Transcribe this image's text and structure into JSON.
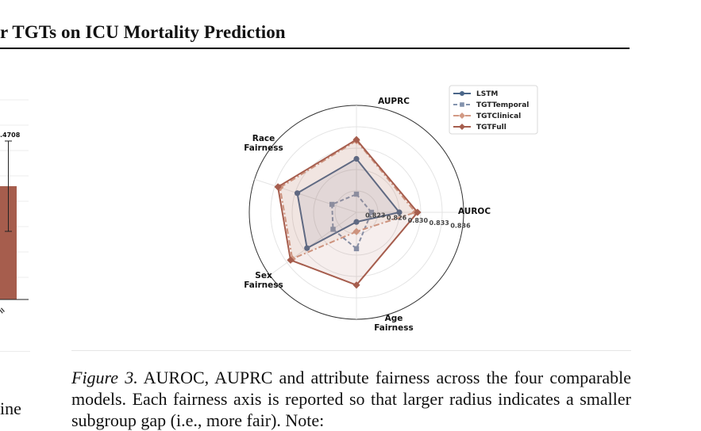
{
  "page": {
    "title": "r TGTs on ICU Mortality Prediction",
    "caption_label": "Figure 3.",
    "caption_text": " AUROC, AUPRC and attribute fairness across the four comparable models. Each fairness axis is reported so that larger radius indicates a smaller subgroup gap (i.e., more fair). Note:",
    "left_text": "ine"
  },
  "left_chart": {
    "value_label": ".4708",
    "tick_label": "ll",
    "bar_color": "#a65d4d"
  },
  "chart_data": {
    "type": "radar",
    "axes": [
      "AUPRC",
      "AUROC",
      "Age\nFairness",
      "Sex\nFairness",
      "Race\nFairness"
    ],
    "radial_ticks": [
      "0.823",
      "0.826",
      "0.830",
      "0.833",
      "0.836"
    ],
    "legend_position": "top-right",
    "series": [
      {
        "name": "LSTM",
        "color": "#4a6689",
        "marker": "circle",
        "dash": "solid",
        "fill": true,
        "values": [
          0.5,
          0.4,
          0.09,
          0.57,
          0.58
        ]
      },
      {
        "name": "TGTTemporal",
        "color": "#8393ad",
        "marker": "square",
        "dash": "dashed",
        "fill": false,
        "values": [
          0.17,
          0.14,
          0.34,
          0.27,
          0.24
        ]
      },
      {
        "name": "TGTClinical",
        "color": "#d29a84",
        "marker": "diamond",
        "dash": "dashdot",
        "fill": true,
        "values": [
          0.67,
          0.55,
          0.18,
          0.74,
          0.75
        ]
      },
      {
        "name": "TGTFull",
        "color": "#a65d4d",
        "marker": "diamond",
        "dash": "solid",
        "fill": true,
        "values": [
          0.68,
          0.57,
          0.68,
          0.76,
          0.77
        ]
      }
    ]
  }
}
